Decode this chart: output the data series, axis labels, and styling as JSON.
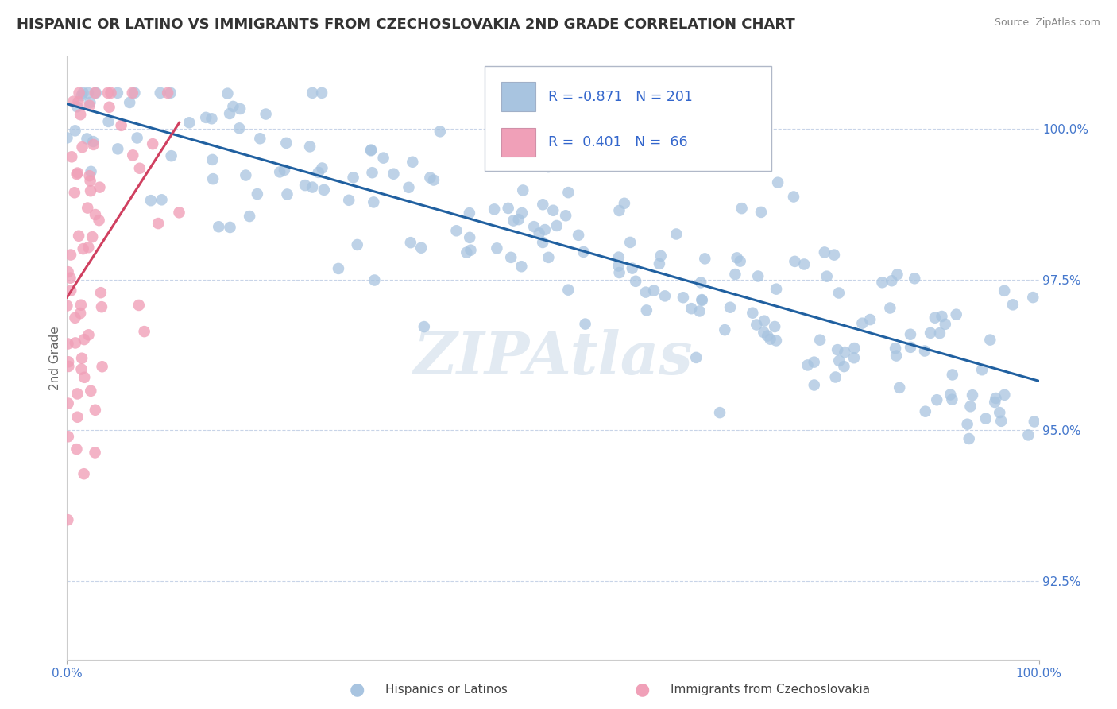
{
  "title": "HISPANIC OR LATINO VS IMMIGRANTS FROM CZECHOSLOVAKIA 2ND GRADE CORRELATION CHART",
  "source": "Source: ZipAtlas.com",
  "ylabel": "2nd Grade",
  "xmin": 0.0,
  "xmax": 100.0,
  "ymin": 91.2,
  "ymax": 101.2,
  "yticks": [
    92.5,
    95.0,
    97.5,
    100.0
  ],
  "xticks": [
    0.0,
    100.0
  ],
  "xtick_labels": [
    "0.0%",
    "100.0%"
  ],
  "ytick_labels": [
    "92.5%",
    "95.0%",
    "97.5%",
    "100.0%"
  ],
  "blue_R": -0.871,
  "blue_N": 201,
  "pink_R": 0.401,
  "pink_N": 66,
  "blue_color": "#a8c4e0",
  "pink_color": "#f0a0b8",
  "blue_line_color": "#2060a0",
  "pink_line_color": "#d04060",
  "legend_blue_label": "Hispanics or Latinos",
  "legend_pink_label": "Immigrants from Czechoslovakia",
  "watermark": "ZIPAtlas",
  "title_fontsize": 13,
  "label_fontsize": 11,
  "tick_fontsize": 11
}
